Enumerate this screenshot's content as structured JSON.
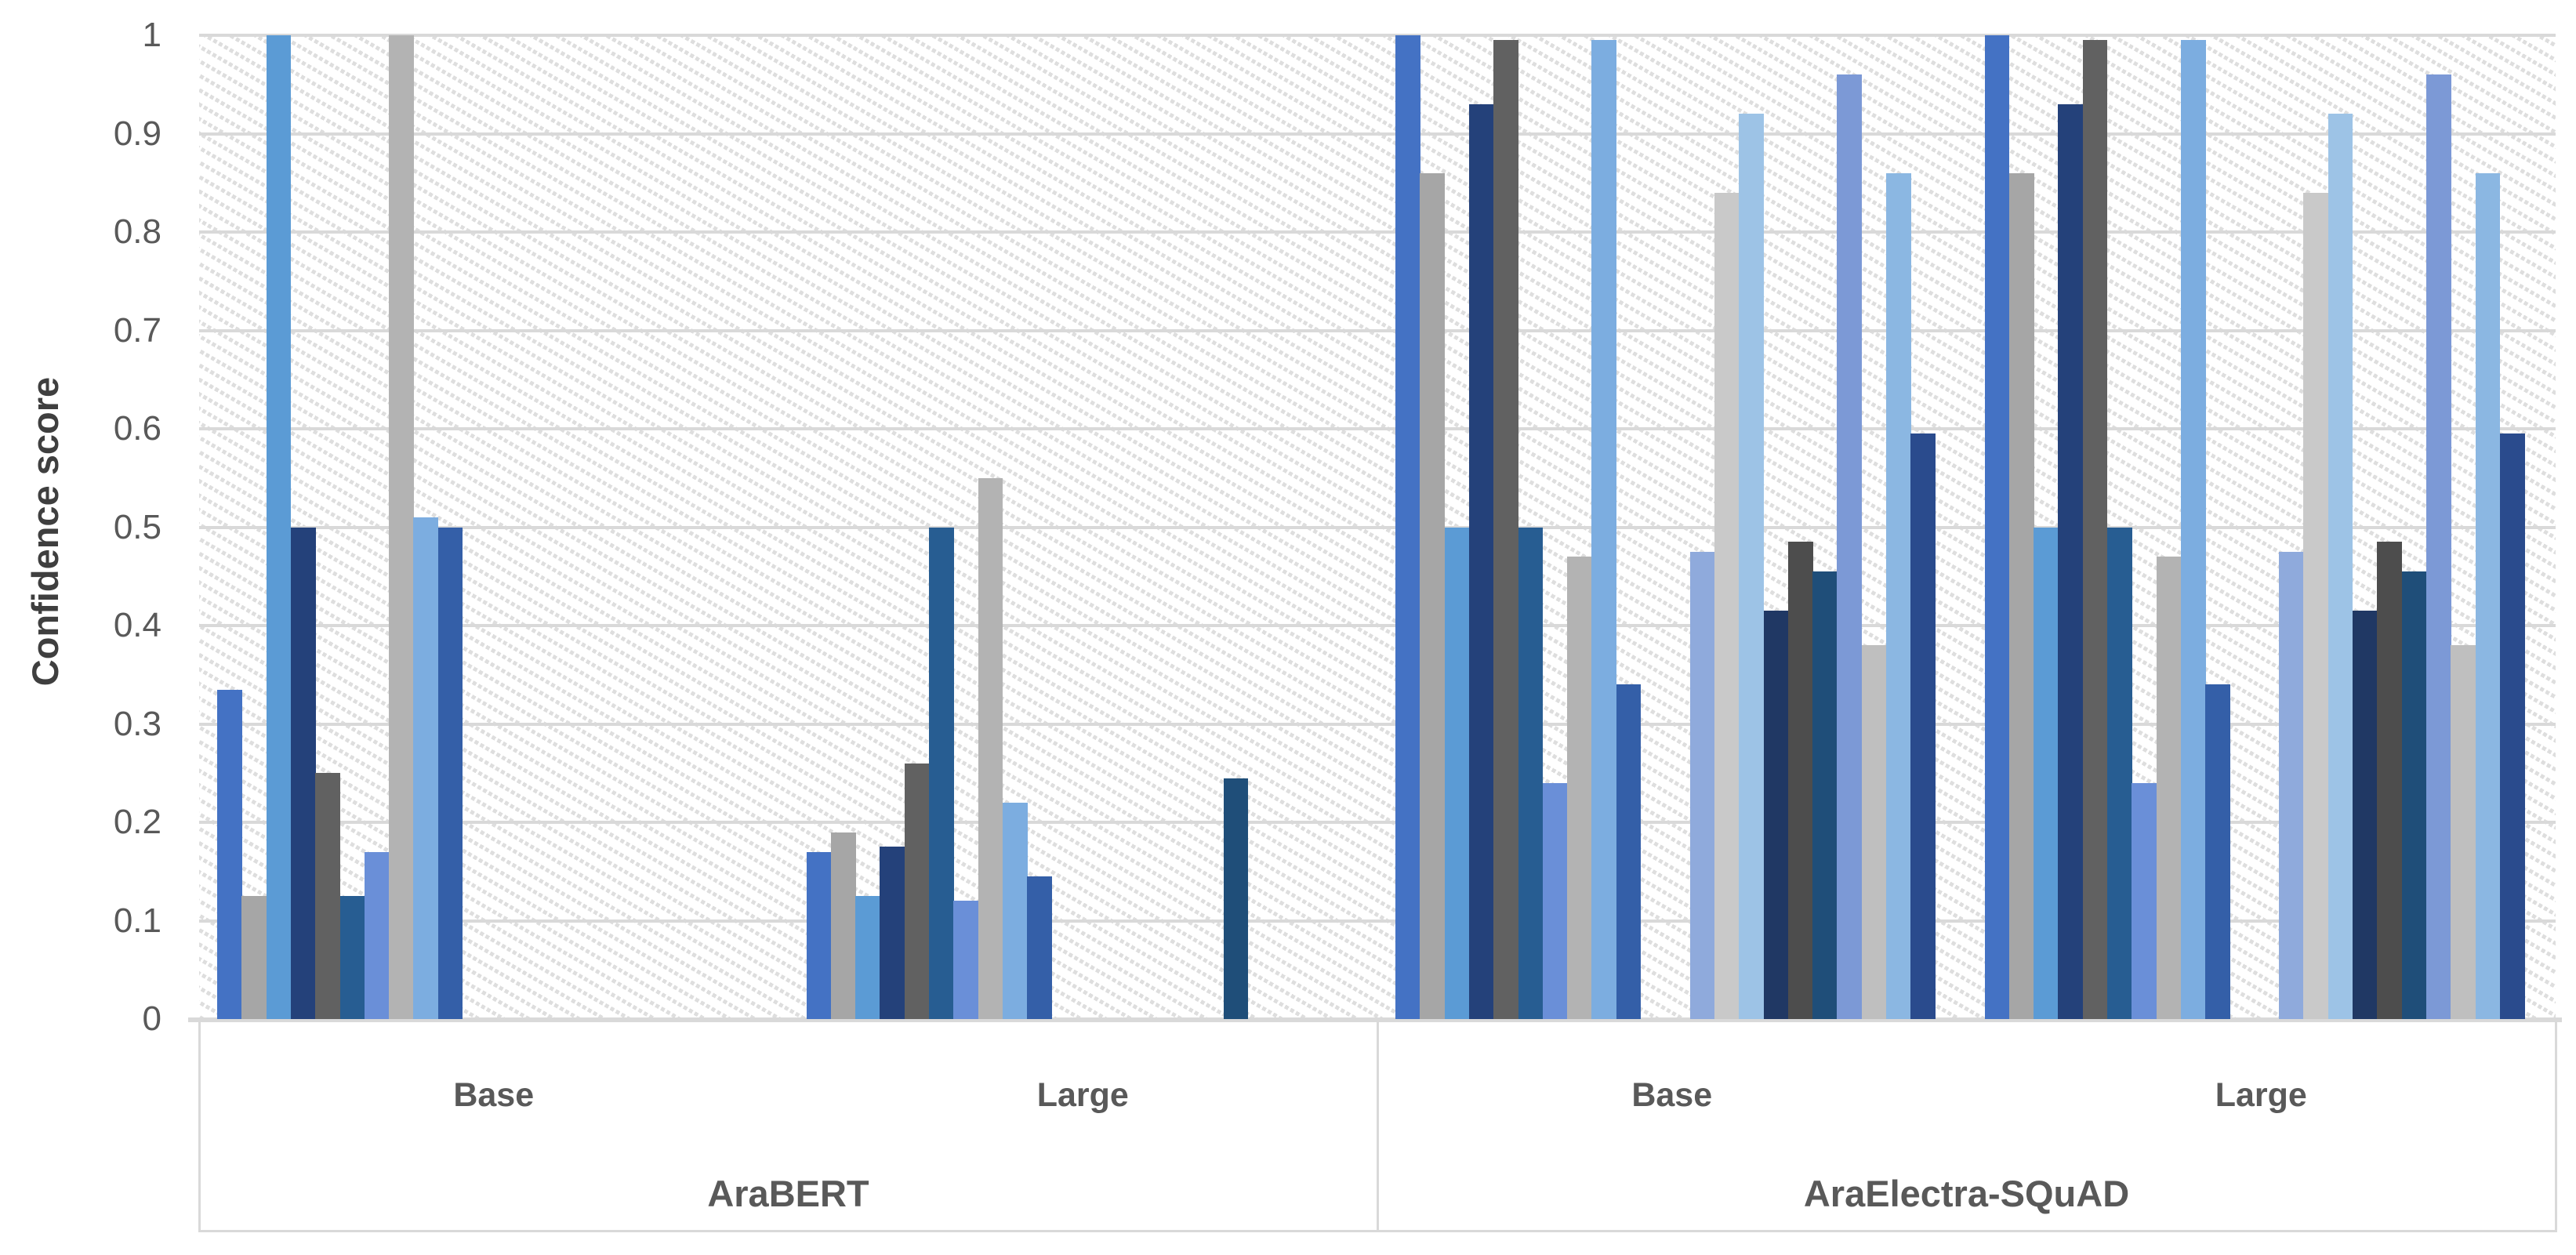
{
  "figure_bg": "#ffffff",
  "axis": {
    "y_title": "Confidence score",
    "tick_color": "#595959",
    "label_color": "#595959",
    "title_color": "#3f3f3f",
    "gridline_color": "#d9d9d9"
  },
  "chart_data": {
    "type": "bar",
    "title": "",
    "xlabel": "",
    "ylabel": "Confidence score",
    "ylim": [
      0,
      1
    ],
    "grid": "horizontal",
    "legend": "none",
    "y_tick_labels": [
      "0",
      "0.1",
      "0.2",
      "0.3",
      "0.4",
      "0.5",
      "0.6",
      "0.7",
      "0.8",
      "0.9",
      "1"
    ],
    "size_labels": [
      "Base",
      "Large",
      "Base",
      "Large"
    ],
    "model_labels": [
      "AraBERT",
      "AraElectra-SQuAD"
    ],
    "slots_per_group": 24,
    "series_colors": [
      "#4472C4",
      "#A6A6A6",
      "#5B9BD5",
      "#24417A",
      "#616161",
      "#275D92",
      "#6A8FD8",
      "#B3B3B3",
      "#7CADE0",
      "#345FA8",
      null,
      null,
      "#8FAADC",
      "#C9C9C9",
      "#9DC3E6",
      "#203864",
      "#4D4D4D",
      "#1F4E79",
      "#7C99D6",
      "#BFBFBF",
      "#8BB7E2",
      "#2A4B8D",
      null,
      null
    ],
    "groups": [
      {
        "model": "AraBERT",
        "size": "Base",
        "values": [
          0.335,
          0.125,
          1,
          0.5,
          0.25,
          0.125,
          0.17,
          1,
          0.51,
          0.5,
          0,
          0,
          0,
          0,
          0,
          0,
          0,
          0,
          0,
          0,
          0,
          0,
          0,
          0
        ]
      },
      {
        "model": "AraBERT",
        "size": "Large",
        "values": [
          0.17,
          0.19,
          0.125,
          0.175,
          0.26,
          0.5,
          0.12,
          0.55,
          0.22,
          0.145,
          0,
          0,
          0,
          0,
          0,
          0,
          0,
          0.245,
          0,
          0,
          0,
          0,
          0,
          0
        ]
      },
      {
        "model": "AraElectra-SQuAD",
        "size": "Base",
        "values": [
          1,
          0.86,
          0.5,
          0.93,
          0.995,
          0.5,
          0.24,
          0.47,
          0.995,
          0.34,
          0,
          0,
          0.475,
          0.84,
          0.92,
          0.415,
          0.485,
          0.455,
          0.96,
          0.38,
          0.86,
          0.595,
          0,
          0
        ]
      },
      {
        "model": "AraElectra-SQuAD",
        "size": "Large",
        "values": [
          1,
          0.86,
          0.5,
          0.93,
          0.995,
          0.5,
          0.24,
          0.47,
          0.995,
          0.34,
          0,
          0,
          0.475,
          0.84,
          0.92,
          0.415,
          0.485,
          0.455,
          0.96,
          0.38,
          0.86,
          0.595,
          0,
          0
        ]
      }
    ]
  }
}
